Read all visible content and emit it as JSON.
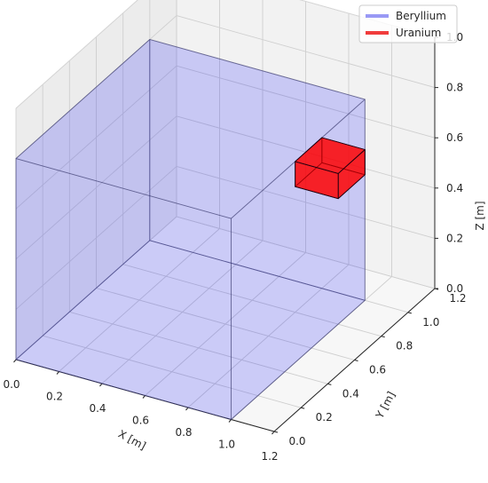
{
  "chart_data": {
    "type": "3d-box",
    "title": "",
    "xlabel": "X [m]",
    "ylabel": "Y [m]",
    "zlabel": "Z [m]",
    "xlim": [
      0.0,
      1.2
    ],
    "ylim": [
      0.0,
      1.2
    ],
    "zlim": [
      0.0,
      1.0
    ],
    "x_ticks": [
      "0.0",
      "0.2",
      "0.4",
      "0.6",
      "0.8",
      "1.0",
      "1.2"
    ],
    "y_ticks": [
      "0.0",
      "0.2",
      "0.4",
      "0.6",
      "0.8",
      "1.0",
      "1.2"
    ],
    "z_ticks": [
      "0.0",
      "0.2",
      "0.4",
      "0.6",
      "0.8",
      "1.0"
    ],
    "grid": true,
    "legend_position": "top-right",
    "series": [
      {
        "name": "Beryllium",
        "color": "#0000ff",
        "legend_color": "#9999f5",
        "alpha": 0.4,
        "box": {
          "x": [
            0.0,
            1.0
          ],
          "y": [
            0.0,
            1.0
          ],
          "z": [
            0.0,
            0.8
          ]
        }
      },
      {
        "name": "Uranium",
        "color": "#ff0000",
        "legend_color": "#f03c3c",
        "alpha": 0.8,
        "box": {
          "x": [
            0.8,
            1.0
          ],
          "y": [
            0.8,
            1.0
          ],
          "z": [
            0.5,
            0.6
          ]
        }
      }
    ]
  }
}
